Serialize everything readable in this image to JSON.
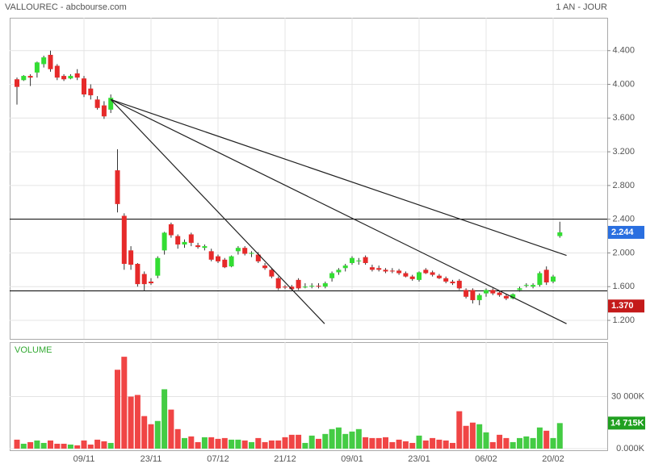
{
  "chart_data": {
    "type": "candlestick",
    "title": "VALLOUREC - abcbourse.com",
    "subtitle": "1 AN - JOUR",
    "categories": [
      null,
      null,
      null,
      null,
      null,
      null,
      null,
      null,
      null,
      null,
      "09/11",
      null,
      null,
      null,
      null,
      null,
      null,
      null,
      null,
      null,
      "23/11",
      null,
      null,
      null,
      null,
      null,
      null,
      null,
      null,
      null,
      "07/12",
      null,
      null,
      null,
      null,
      null,
      null,
      null,
      null,
      null,
      "21/12",
      null,
      null,
      null,
      null,
      null,
      null,
      null,
      null,
      null,
      "09/01",
      null,
      null,
      null,
      null,
      null,
      null,
      null,
      null,
      null,
      "23/01",
      null,
      null,
      null,
      null,
      null,
      null,
      null,
      null,
      null,
      "06/02",
      null,
      null,
      null,
      null,
      null,
      null,
      null,
      null,
      null,
      "20/02",
      null
    ],
    "open": [
      4.06,
      4.05,
      4.1,
      4.14,
      4.24,
      4.35,
      4.22,
      4.1,
      4.07,
      4.13,
      4.07,
      3.95,
      3.82,
      3.75,
      3.7,
      2.98,
      2.44,
      2.03,
      1.87,
      1.75,
      1.66,
      1.73,
      2.03,
      2.34,
      2.2,
      2.1,
      2.22,
      2.09,
      2.06,
      2.02,
      1.96,
      1.92,
      1.84,
      2.02,
      2.06,
      1.99,
      1.98,
      1.85,
      1.8,
      1.7,
      1.6,
      1.6,
      1.68,
      1.6,
      1.61,
      1.61,
      1.6,
      1.7,
      1.77,
      1.82,
      1.88,
      1.9,
      1.95,
      1.83,
      1.82,
      1.8,
      1.79,
      1.79,
      1.76,
      1.72,
      1.68,
      1.8,
      1.77,
      1.73,
      1.7,
      1.66,
      1.67,
      1.56,
      1.56,
      1.44,
      1.52,
      1.56,
      1.53,
      1.49,
      1.46,
      1.56,
      1.61,
      1.6,
      1.62,
      1.8,
      1.66,
      2.2
    ],
    "high": [
      4.08,
      4.11,
      4.12,
      4.27,
      4.34,
      4.4,
      4.24,
      4.12,
      4.12,
      4.18,
      4.1,
      4.0,
      3.86,
      3.8,
      3.88,
      3.23,
      2.47,
      2.08,
      1.88,
      1.78,
      1.7,
      1.96,
      2.25,
      2.36,
      2.22,
      2.16,
      2.24,
      2.12,
      2.1,
      2.05,
      1.98,
      1.94,
      1.97,
      2.08,
      2.08,
      2.02,
      2.01,
      1.88,
      1.82,
      1.72,
      1.62,
      1.62,
      1.7,
      1.64,
      1.64,
      1.64,
      1.66,
      1.78,
      1.82,
      1.87,
      1.96,
      1.94,
      1.97,
      1.86,
      1.85,
      1.82,
      1.82,
      1.81,
      1.78,
      1.74,
      1.78,
      1.82,
      1.79,
      1.75,
      1.72,
      1.68,
      1.69,
      1.58,
      1.58,
      1.52,
      1.58,
      1.58,
      1.55,
      1.51,
      1.52,
      1.6,
      1.64,
      1.64,
      1.78,
      1.84,
      1.74,
      2.37
    ],
    "low": [
      3.76,
      4.04,
      3.98,
      4.08,
      4.2,
      4.15,
      4.05,
      4.04,
      4.06,
      4.05,
      3.85,
      3.82,
      3.7,
      3.59,
      3.66,
      2.48,
      1.8,
      1.8,
      1.6,
      1.55,
      1.62,
      1.7,
      1.98,
      2.18,
      2.05,
      2.06,
      2.08,
      2.05,
      2.03,
      1.9,
      1.88,
      1.82,
      1.83,
      1.98,
      1.97,
      1.95,
      1.88,
      1.8,
      1.7,
      1.56,
      1.57,
      1.56,
      1.56,
      1.58,
      1.58,
      1.58,
      1.58,
      1.66,
      1.74,
      1.78,
      1.86,
      1.86,
      1.86,
      1.78,
      1.78,
      1.76,
      1.76,
      1.74,
      1.71,
      1.67,
      1.66,
      1.75,
      1.72,
      1.69,
      1.64,
      1.62,
      1.56,
      1.46,
      1.4,
      1.38,
      1.48,
      1.5,
      1.48,
      1.44,
      1.45,
      1.54,
      1.59,
      1.58,
      1.6,
      1.62,
      1.64,
      2.18
    ],
    "close": [
      3.97,
      4.1,
      4.08,
      4.26,
      4.32,
      4.18,
      4.08,
      4.06,
      4.1,
      4.08,
      3.88,
      3.87,
      3.72,
      3.62,
      3.84,
      2.58,
      1.87,
      1.86,
      1.63,
      1.63,
      1.64,
      1.94,
      2.24,
      2.21,
      2.1,
      2.13,
      2.12,
      2.07,
      2.08,
      1.92,
      1.9,
      1.83,
      1.96,
      2.06,
      1.99,
      2.0,
      1.9,
      1.82,
      1.72,
      1.58,
      1.59,
      1.57,
      1.58,
      1.6,
      1.61,
      1.6,
      1.64,
      1.76,
      1.8,
      1.85,
      1.94,
      1.91,
      1.88,
      1.8,
      1.8,
      1.78,
      1.78,
      1.76,
      1.72,
      1.69,
      1.77,
      1.76,
      1.74,
      1.7,
      1.66,
      1.64,
      1.58,
      1.48,
      1.44,
      1.5,
      1.56,
      1.52,
      1.5,
      1.46,
      1.51,
      1.58,
      1.62,
      1.62,
      1.76,
      1.65,
      1.72,
      2.244
    ],
    "volume_title": "VOLUME",
    "volume": [
      5160,
      2810,
      3750,
      4690,
      3280,
      4690,
      2810,
      2810,
      2340,
      1880,
      4690,
      2340,
      5160,
      4220,
      3280,
      45470,
      52970,
      30000,
      30940,
      18750,
      14060,
      15940,
      34220,
      22500,
      11250,
      6090,
      7030,
      3750,
      6560,
      6560,
      5630,
      6090,
      5160,
      5160,
      4690,
      3750,
      6090,
      3750,
      4690,
      4690,
      6560,
      7970,
      7970,
      3280,
      7500,
      5630,
      8440,
      11250,
      12190,
      8440,
      9840,
      11250,
      6560,
      6090,
      6090,
      6560,
      3750,
      5160,
      4220,
      3280,
      7500,
      4690,
      6090,
      5160,
      4690,
      3280,
      21560,
      13130,
      15000,
      14060,
      9380,
      3750,
      7970,
      6090,
      3750,
      6090,
      7030,
      6090,
      12190,
      10310,
      6090,
      14715
    ],
    "ylim": [
      0.98,
      4.79
    ],
    "yticks": [
      {
        "value": 1.2,
        "label": "1.200"
      },
      {
        "value": 1.6,
        "label": "1.600"
      },
      {
        "value": 2.0,
        "label": "2.000"
      },
      {
        "value": 2.4,
        "label": "2.400"
      },
      {
        "value": 2.8,
        "label": "2.800"
      },
      {
        "value": 3.2,
        "label": "3.200"
      },
      {
        "value": 3.6,
        "label": "3.600"
      },
      {
        "value": 4.0,
        "label": "4.000"
      },
      {
        "value": 4.4,
        "label": "4.400"
      }
    ],
    "y2lim": [
      -940,
      61400
    ],
    "y2ticks": [
      {
        "value": 0,
        "label": "0.000K"
      },
      {
        "value": 30000,
        "label": "30 000K"
      }
    ],
    "levels": [
      2.4,
      1.55
    ],
    "trendlines": [
      {
        "x": [
          14,
          45.9
        ],
        "y": [
          3.82,
          1.16
        ]
      },
      {
        "x": [
          14,
          82
        ],
        "y": [
          3.82,
          1.16
        ]
      },
      {
        "x": [
          14,
          82
        ],
        "y": [
          3.82,
          1.97
        ]
      }
    ],
    "price_badges": [
      {
        "value": 2.244,
        "label": "2.244",
        "color": "#2a6fe0"
      },
      {
        "value": 1.37,
        "label": "1.370",
        "color": "#c41a1a"
      }
    ],
    "volume_badge": {
      "value": 14715,
      "label": "14 715K",
      "color": "#20a020"
    },
    "up_color": "#33dd33",
    "down_color": "#e62a2a",
    "grid": true
  }
}
